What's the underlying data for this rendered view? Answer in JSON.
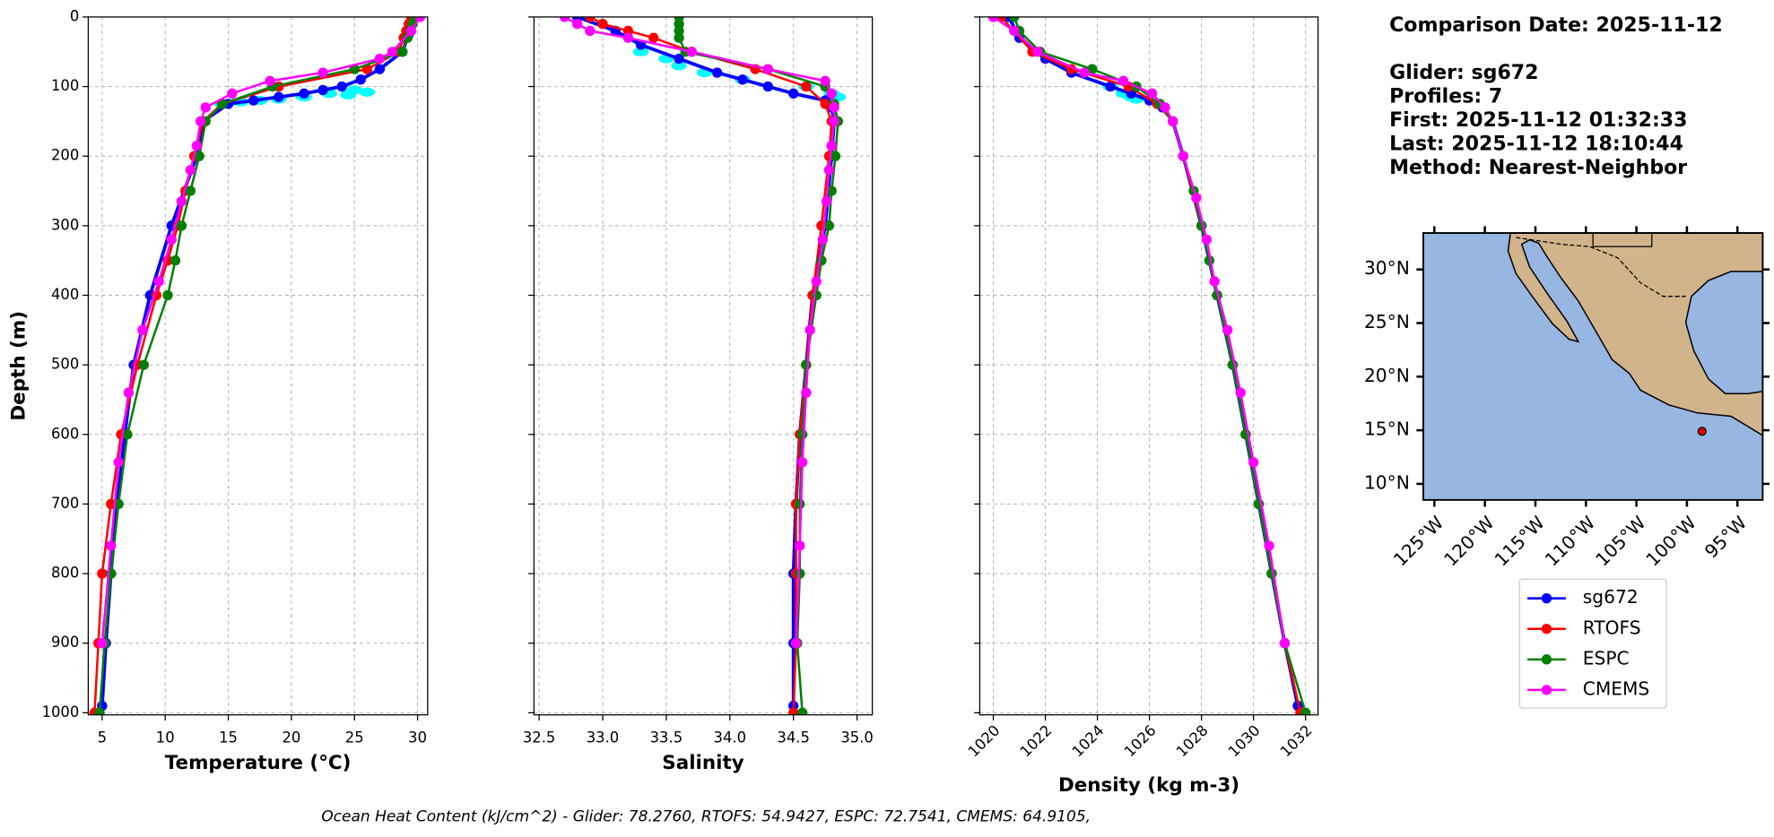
{
  "chart_data": [
    {
      "type": "profile",
      "xlabel": "Temperature (°C)",
      "ylabel": "Depth (m)",
      "xlim": [
        3.9,
        30.8
      ],
      "xticks": [
        5,
        10,
        15,
        20,
        25,
        30
      ],
      "ylim": [
        1003,
        0
      ],
      "yticks": [
        0,
        100,
        200,
        300,
        400,
        500,
        600,
        700,
        800,
        900,
        1000
      ],
      "grid": true,
      "series": [
        {
          "color": "#00ffff",
          "style": "scatter",
          "depth": [
            105,
            108,
            110,
            112,
            115,
            118,
            120,
            122,
            125
          ],
          "values": [
            25,
            26,
            23,
            24.5,
            21,
            19,
            17.5,
            16,
            14.5
          ]
        },
        {
          "name": "sg672",
          "color": "#0000ff",
          "depth": [
            0,
            25,
            50,
            75,
            90,
            100,
            105,
            110,
            115,
            120,
            125,
            150,
            200,
            300,
            400,
            500,
            600,
            700,
            800,
            900,
            990
          ],
          "values": [
            29.5,
            29.3,
            28.8,
            27,
            25.5,
            24,
            22.5,
            21,
            19,
            17,
            15,
            13,
            12.5,
            10.5,
            8.8,
            7.5,
            6.8,
            6.2,
            5.7,
            5.3,
            5
          ]
        },
        {
          "name": "RTOFS",
          "color": "#ff0000",
          "depth": [
            0,
            10,
            20,
            30,
            50,
            75,
            100,
            125,
            150,
            200,
            250,
            300,
            350,
            400,
            500,
            600,
            700,
            800,
            900,
            1000
          ],
          "values": [
            29.5,
            29.3,
            29.1,
            28.9,
            28.5,
            26,
            19,
            14.5,
            13,
            12.3,
            11.6,
            11,
            10.2,
            9.3,
            7.8,
            6.5,
            5.7,
            5,
            4.7,
            4.4
          ]
        },
        {
          "name": "ESPC",
          "color": "#008000",
          "depth": [
            0,
            10,
            20,
            30,
            50,
            75,
            100,
            125,
            150,
            200,
            250,
            300,
            350,
            400,
            500,
            600,
            700,
            800,
            900,
            1000
          ],
          "values": [
            29.8,
            29.6,
            29.4,
            29.2,
            28.8,
            25,
            18.5,
            14.5,
            13.2,
            12.7,
            12,
            11.3,
            10.8,
            10.2,
            8.3,
            7,
            6.3,
            5.7,
            5.2,
            4.8
          ]
        },
        {
          "name": "CMEMS",
          "color": "#ff00ff",
          "depth": [
            0,
            20,
            50,
            60,
            80,
            92,
            110,
            130,
            150,
            185,
            220,
            265,
            320,
            380,
            450,
            540,
            640,
            760,
            900
          ],
          "values": [
            30.2,
            29.5,
            28,
            27,
            22.5,
            18.3,
            15.3,
            13.2,
            12.8,
            12.5,
            12,
            11.3,
            10.5,
            9.5,
            8.2,
            7.1,
            6.3,
            5.7,
            5
          ]
        }
      ]
    },
    {
      "type": "profile",
      "xlabel": "Salinity",
      "xlim": [
        32.46,
        35.12
      ],
      "xticks": [
        32.5,
        {
          "value": 33,
          "label": "33.0"
        },
        33.5,
        {
          "value": 34,
          "label": "34.0"
        },
        34.5,
        {
          "value": 35,
          "label": "35.0"
        }
      ],
      "ylim": [
        1003,
        0
      ],
      "yticks": [
        0,
        100,
        200,
        300,
        400,
        500,
        600,
        700,
        800,
        900,
        1000
      ],
      "grid": true,
      "series": [
        {
          "color": "#00ffff",
          "style": "scatter",
          "depth": [
            50,
            60,
            70,
            80,
            90,
            100,
            110,
            115,
            120
          ],
          "values": [
            33.3,
            33.5,
            33.6,
            33.8,
            34.1,
            34.6,
            34.8,
            34.85,
            34.8
          ]
        },
        {
          "name": "sg672",
          "color": "#0000ff",
          "depth": [
            0,
            20,
            40,
            60,
            80,
            90,
            100,
            110,
            120,
            130,
            150,
            200,
            300,
            400,
            500,
            600,
            700,
            800,
            900,
            990
          ],
          "values": [
            32.8,
            33.1,
            33.3,
            33.6,
            33.9,
            34.1,
            34.3,
            34.5,
            34.75,
            34.8,
            34.82,
            34.8,
            34.75,
            34.65,
            34.6,
            34.55,
            34.52,
            34.5,
            34.5,
            34.5
          ]
        },
        {
          "name": "RTOFS",
          "color": "#ff0000",
          "depth": [
            0,
            10,
            20,
            30,
            50,
            75,
            100,
            125,
            150,
            200,
            300,
            400,
            500,
            600,
            700,
            800,
            900,
            1000
          ],
          "values": [
            32.9,
            33,
            33.2,
            33.4,
            33.7,
            34.2,
            34.6,
            34.75,
            34.8,
            34.78,
            34.72,
            34.65,
            34.6,
            34.55,
            34.52,
            34.52,
            34.52,
            34.5
          ]
        },
        {
          "name": "ESPC",
          "color": "#008000",
          "depth": [
            0,
            10,
            20,
            30,
            50,
            75,
            100,
            125,
            150,
            200,
            250,
            300,
            350,
            400,
            500,
            600,
            700,
            800,
            900,
            1000
          ],
          "values": [
            33.6,
            33.6,
            33.6,
            33.6,
            33.65,
            34.3,
            34.75,
            34.82,
            34.85,
            34.83,
            34.8,
            34.78,
            34.72,
            34.68,
            34.6,
            34.57,
            34.55,
            34.55,
            34.53,
            34.57
          ]
        },
        {
          "name": "CMEMS",
          "color": "#ff00ff",
          "depth": [
            0,
            10,
            20,
            30,
            50,
            75,
            92,
            110,
            130,
            150,
            185,
            220,
            265,
            320,
            380,
            450,
            540,
            640,
            760,
            900
          ],
          "values": [
            32.7,
            32.8,
            32.9,
            33.2,
            33.7,
            34.3,
            34.75,
            34.8,
            34.82,
            34.82,
            34.8,
            34.78,
            34.76,
            34.73,
            34.68,
            34.63,
            34.6,
            34.57,
            34.55,
            34.52
          ]
        }
      ]
    },
    {
      "type": "profile",
      "xlabel": "Density (kg m-3)",
      "xlim": [
        1019.48,
        1032.48
      ],
      "xticks": [
        1020,
        1022,
        1024,
        1026,
        1028,
        1030,
        1032
      ],
      "ylim": [
        1003,
        0
      ],
      "yticks": [
        0,
        100,
        200,
        300,
        400,
        500,
        600,
        700,
        800,
        900,
        1000
      ],
      "grid": true,
      "series": [
        {
          "color": "#00ffff",
          "style": "scatter",
          "depth": [
            100,
            110,
            115,
            118
          ],
          "values": [
            1024.5,
            1025,
            1025.3,
            1025.5
          ]
        },
        {
          "name": "sg672",
          "color": "#0000ff",
          "depth": [
            0,
            30,
            60,
            80,
            100,
            110,
            120,
            130,
            150,
            200,
            300,
            400,
            500,
            600,
            700,
            800,
            900,
            990
          ],
          "values": [
            1020.6,
            1021,
            1022,
            1023,
            1024.5,
            1025.3,
            1026,
            1026.5,
            1026.9,
            1027.3,
            1028,
            1028.6,
            1029.2,
            1029.7,
            1030.2,
            1030.7,
            1031.2,
            1031.7
          ]
        },
        {
          "name": "RTOFS",
          "color": "#ff0000",
          "depth": [
            0,
            50,
            75,
            100,
            125,
            150,
            200,
            300,
            400,
            500,
            600,
            700,
            800,
            900,
            1000
          ],
          "values": [
            1020.3,
            1021.5,
            1023,
            1025.2,
            1026.3,
            1026.9,
            1027.3,
            1028,
            1028.6,
            1029.2,
            1029.7,
            1030.2,
            1030.7,
            1031.2,
            1031.8
          ]
        },
        {
          "name": "ESPC",
          "color": "#008000",
          "depth": [
            0,
            20,
            50,
            75,
            100,
            125,
            150,
            200,
            250,
            300,
            350,
            400,
            500,
            600,
            700,
            800,
            900,
            1000
          ],
          "values": [
            1020.8,
            1021,
            1021.8,
            1023.8,
            1025.5,
            1026.4,
            1026.9,
            1027.3,
            1027.7,
            1028,
            1028.3,
            1028.6,
            1029.2,
            1029.7,
            1030.2,
            1030.7,
            1031.2,
            1032
          ]
        },
        {
          "name": "CMEMS",
          "color": "#ff00ff",
          "depth": [
            0,
            20,
            50,
            80,
            92,
            110,
            130,
            150,
            200,
            260,
            320,
            380,
            450,
            540,
            640,
            760,
            900
          ],
          "values": [
            1020,
            1020.8,
            1021.7,
            1023.5,
            1025,
            1026.1,
            1026.6,
            1026.9,
            1027.3,
            1027.8,
            1028.2,
            1028.5,
            1029,
            1029.5,
            1030,
            1030.6,
            1031.2
          ]
        }
      ]
    },
    {
      "type": "map",
      "xlim": [
        -126.1,
        -92.5
      ],
      "ylim": [
        8.5,
        33.4
      ],
      "xticks": [
        {
          "value": -125,
          "label": "125°W"
        },
        {
          "value": -120,
          "label": "120°W"
        },
        {
          "value": -115,
          "label": "115°W"
        },
        {
          "value": -110,
          "label": "110°W"
        },
        {
          "value": -105,
          "label": "105°W"
        },
        {
          "value": -100,
          "label": "100°W"
        },
        {
          "value": -95,
          "label": "95°W"
        }
      ],
      "yticks": [
        {
          "value": 10,
          "label": "10°N"
        },
        {
          "value": 15,
          "label": "15°N"
        },
        {
          "value": 20,
          "label": "20°N"
        },
        {
          "value": 25,
          "label": "25°N"
        },
        {
          "value": 30,
          "label": "30°N"
        }
      ],
      "x": [
        -98.5
      ],
      "values": [
        14.9
      ],
      "color": "#e00000"
    }
  ],
  "info": [
    "Comparison Date: 2025-11-12",
    "Glider: sg672",
    "Profiles: 7",
    "First: 2025-11-12 01:32:33",
    "Last: 2025-11-12 18:10:44",
    "Method: Nearest-Neighbor"
  ],
  "footer": "Ocean Heat Content (kJ/cm^2) - Glider: 78.2760,  RTOFS: 54.9427,  ESPC: 72.7541,  CMEMS: 64.9105,"
}
